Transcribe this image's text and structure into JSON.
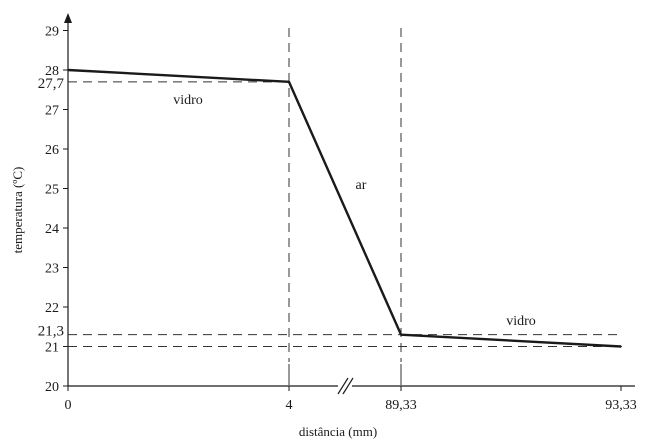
{
  "chart_data": {
    "type": "line",
    "title": "",
    "xlabel": "distância (mm)",
    "ylabel": "temperatura (ºC)",
    "ylim": [
      20,
      29
    ],
    "y_ticks": [
      20,
      21,
      22,
      23,
      24,
      25,
      26,
      27,
      28,
      29
    ],
    "x_ticks": [
      {
        "value": 0,
        "label": "0"
      },
      {
        "value": 4,
        "label": "4"
      },
      {
        "value": 89.33,
        "label": "89,33"
      },
      {
        "value": 93.33,
        "label": "93,33"
      }
    ],
    "axis_break": {
      "between": [
        4,
        89.33
      ]
    },
    "series": [
      {
        "points": [
          {
            "x": 0,
            "y": 28
          },
          {
            "x": 4,
            "y": 27.7
          },
          {
            "x": 89.33,
            "y": 21.3
          },
          {
            "x": 93.33,
            "y": 21
          }
        ]
      }
    ],
    "reference_lines": [
      {
        "axis": "y",
        "value": 27.7,
        "label": "27,7"
      },
      {
        "axis": "y",
        "value": 21.3,
        "label": "21,3"
      },
      {
        "axis": "y",
        "value": 21
      },
      {
        "axis": "x",
        "value": 4
      },
      {
        "axis": "x",
        "value": 89.33
      }
    ],
    "region_labels": [
      {
        "text": "vidro"
      },
      {
        "text": "ar"
      },
      {
        "text": "vidro"
      }
    ],
    "grid": false,
    "line_color": "#1a1a1a",
    "dash_color": "#333333"
  }
}
